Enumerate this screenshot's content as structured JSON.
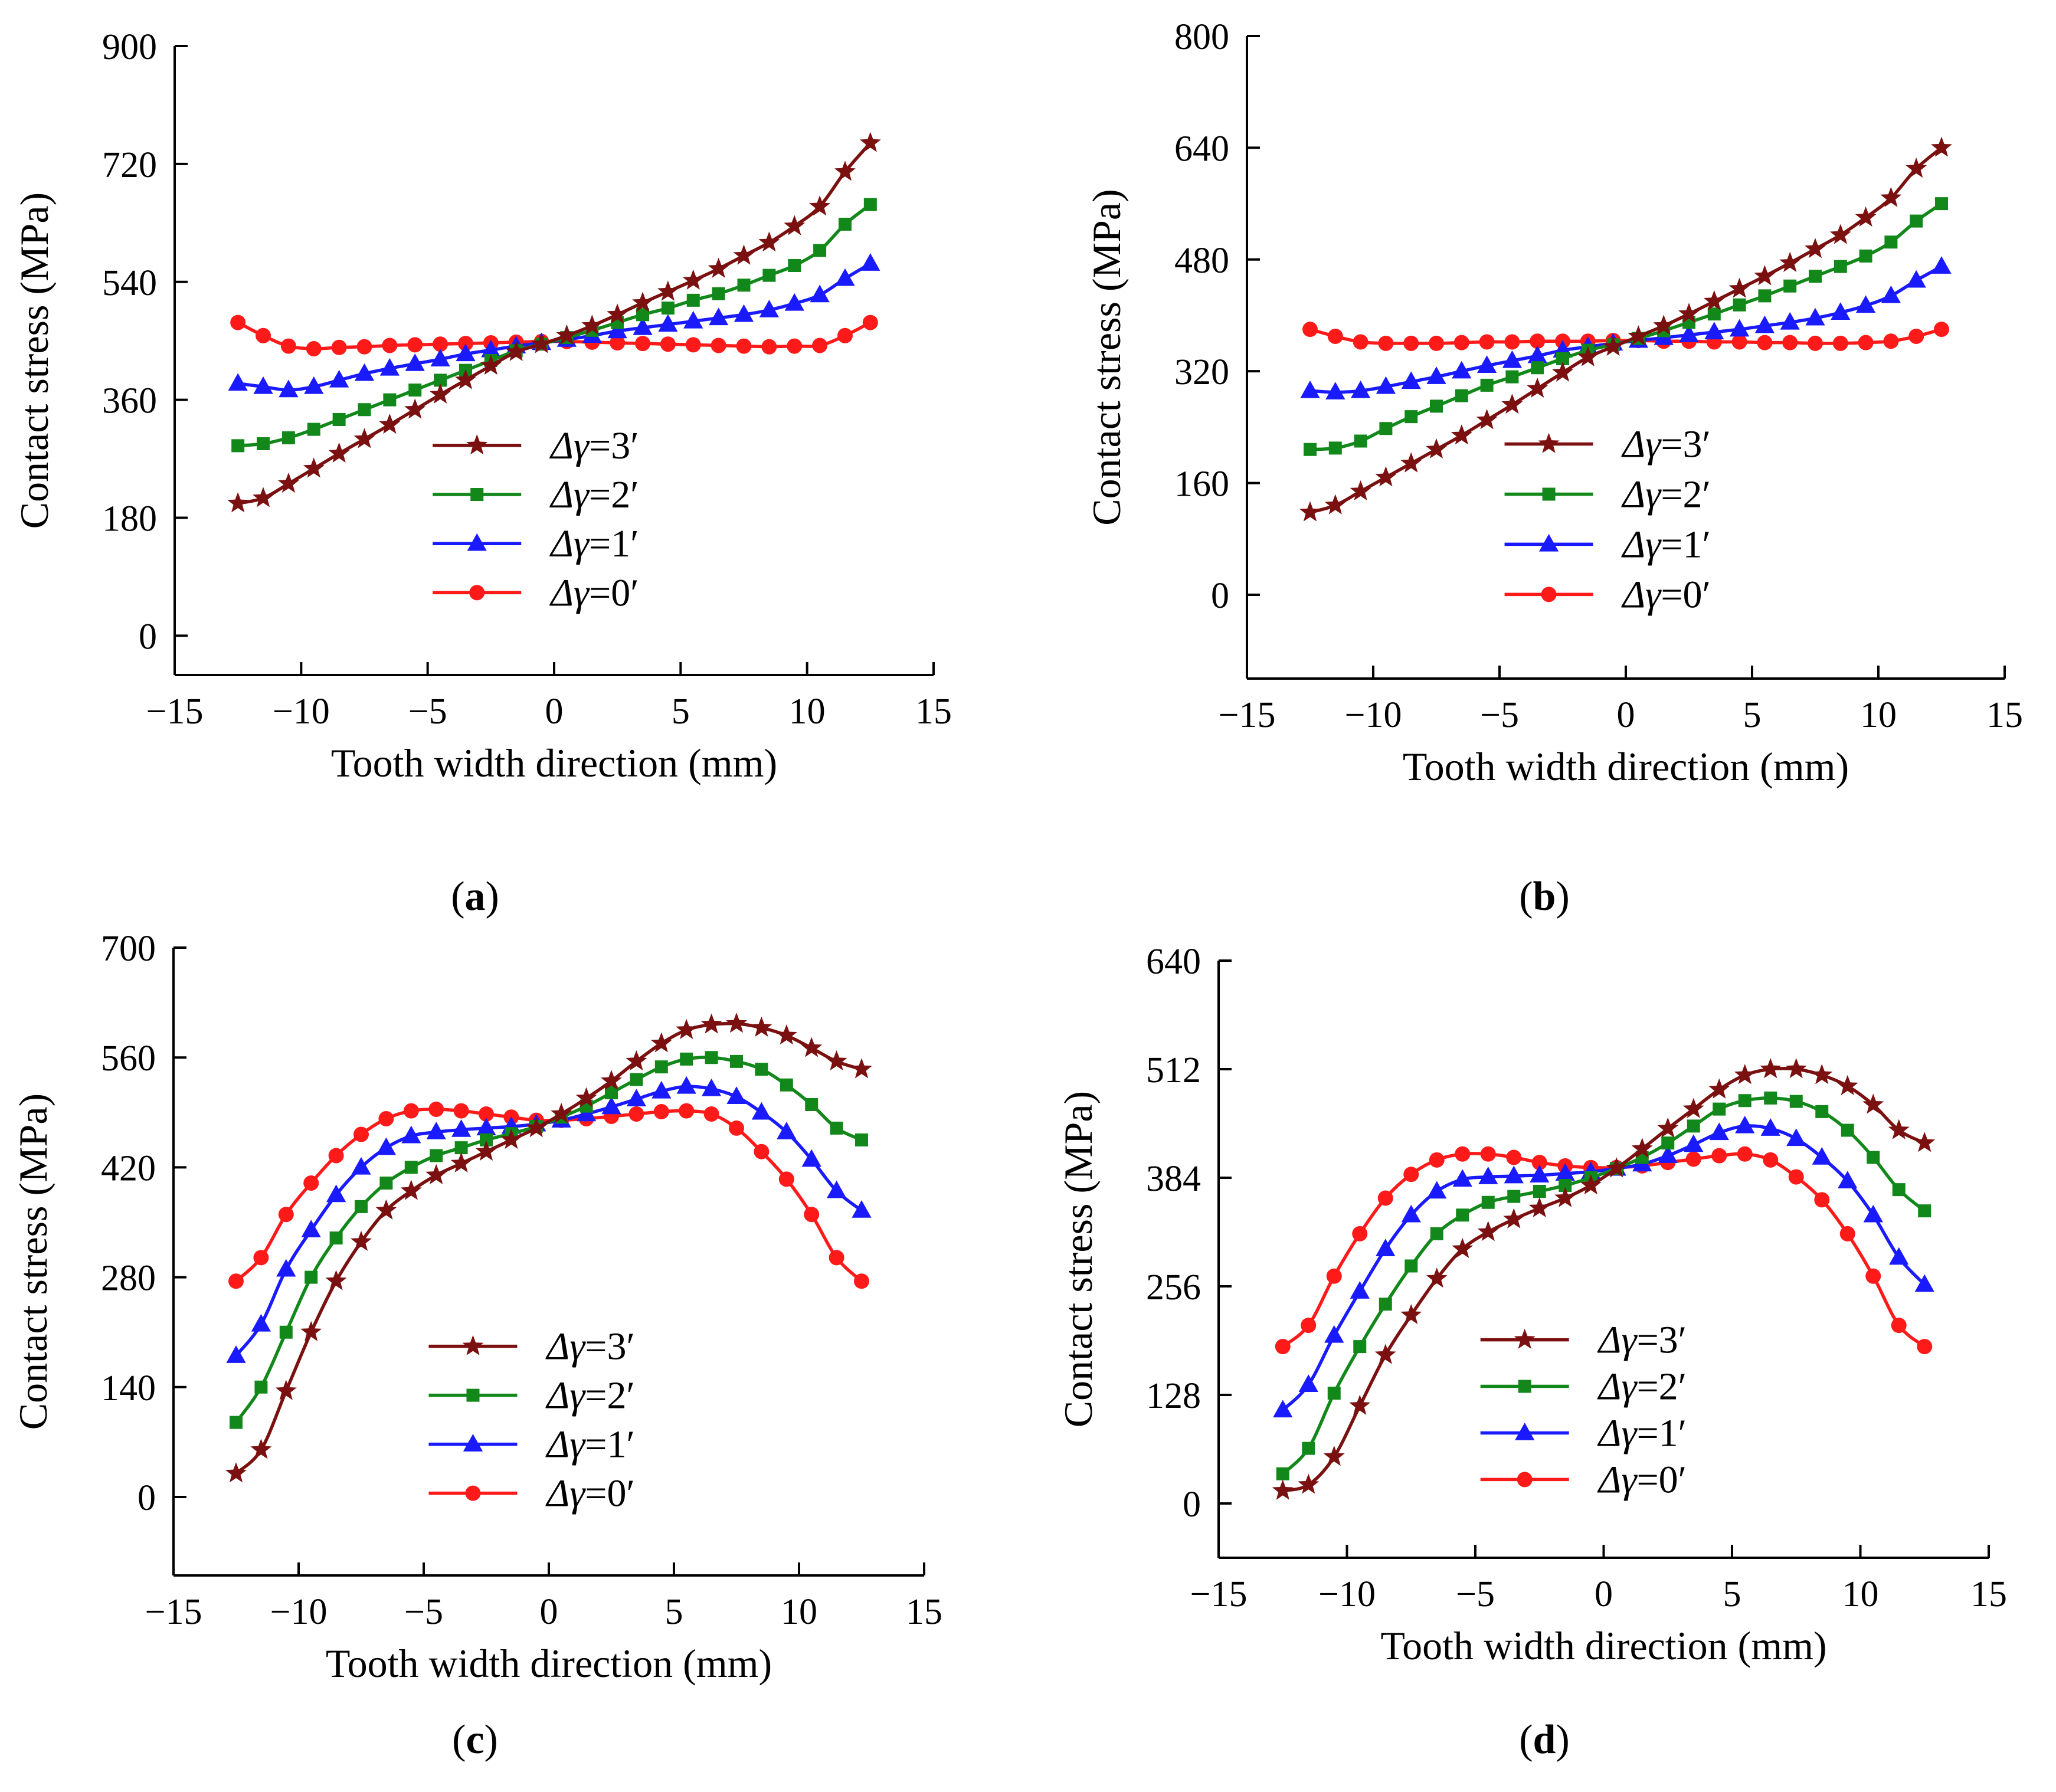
{
  "figure": {
    "background": "#ffffff"
  },
  "series_styles": [
    {
      "key": "d3",
      "color": "#7b1010",
      "marker": "star"
    },
    {
      "key": "d2",
      "color": "#12881a",
      "marker": "square"
    },
    {
      "key": "d1",
      "color": "#1a1aff",
      "marker": "triangle"
    },
    {
      "key": "d0",
      "color": "#ff1a1a",
      "marker": "circle"
    }
  ],
  "chart_data": [
    {
      "id": "a",
      "type": "line",
      "caption": "(a)",
      "caption_letter": "a",
      "xlabel": "Tooth width direction  (mm)",
      "ylabel": "Contact stress (MPa)",
      "xlim": [
        -15,
        15
      ],
      "ylim": [
        -60,
        900
      ],
      "xticks": [
        -15,
        -10,
        -5,
        0,
        5,
        10,
        15
      ],
      "xtick_labels": [
        "−15",
        "−10",
        "−5",
        "0",
        "5",
        "10",
        "15"
      ],
      "yticks": [
        0,
        180,
        360,
        540,
        720,
        900
      ],
      "ytick_labels": [
        "0",
        "180",
        "360",
        "540",
        "720",
        "900"
      ],
      "x": [
        -12.5,
        -11.5,
        -10.5,
        -9.5,
        -8.5,
        -7.5,
        -6.5,
        -5.5,
        -4.5,
        -3.5,
        -2.5,
        -1.5,
        -0.5,
        0.5,
        1.5,
        2.5,
        3.5,
        4.5,
        5.5,
        6.5,
        7.5,
        8.5,
        9.5,
        10.5,
        11.5,
        12.5
      ],
      "series": [
        {
          "name": "Δγ=3′",
          "legend_prefix": "Δ",
          "legend_gamma": "γ",
          "legend_rest": "=3′",
          "values": [
            202,
            210,
            232,
            255,
            278,
            300,
            322,
            345,
            368,
            390,
            412,
            433,
            445,
            458,
            473,
            490,
            508,
            525,
            542,
            560,
            580,
            600,
            625,
            655,
            708,
            752
          ]
        },
        {
          "name": "Δγ=2′",
          "legend_prefix": "Δ",
          "legend_gamma": "γ",
          "legend_rest": "=2′",
          "values": [
            290,
            293,
            302,
            315,
            330,
            345,
            360,
            375,
            390,
            405,
            420,
            435,
            445,
            455,
            466,
            478,
            490,
            500,
            512,
            522,
            535,
            550,
            565,
            588,
            628,
            658
          ]
        },
        {
          "name": "Δγ=1′",
          "legend_prefix": "Δ",
          "legend_gamma": "γ",
          "legend_rest": "=1′",
          "values": [
            385,
            380,
            375,
            380,
            390,
            400,
            408,
            415,
            422,
            430,
            436,
            442,
            447,
            452,
            458,
            465,
            470,
            475,
            480,
            485,
            490,
            497,
            507,
            520,
            545,
            568
          ]
        },
        {
          "name": "Δγ=0′",
          "legend_prefix": "Δ",
          "legend_gamma": "γ",
          "legend_rest": "=0′",
          "values": [
            478,
            458,
            442,
            438,
            440,
            441,
            443,
            444,
            445,
            446,
            447,
            448,
            449,
            449,
            448,
            447,
            446,
            445,
            444,
            443,
            442,
            441,
            442,
            443,
            458,
            478
          ]
        }
      ]
    },
    {
      "id": "b",
      "type": "line",
      "caption": "(b)",
      "caption_letter": "b",
      "xlabel": "Tooth width direction  (mm)",
      "ylabel": "Contact stress (MPa)",
      "xlim": [
        -15,
        15
      ],
      "ylim": [
        -120,
        800
      ],
      "xticks": [
        -15,
        -10,
        -5,
        0,
        5,
        10,
        15
      ],
      "xtick_labels": [
        "−15",
        "−10",
        "−5",
        "0",
        "5",
        "10",
        "15"
      ],
      "yticks": [
        0,
        160,
        320,
        480,
        640,
        800
      ],
      "ytick_labels": [
        "0",
        "160",
        "320",
        "480",
        "640",
        "800"
      ],
      "x": [
        -12.5,
        -11.5,
        -10.5,
        -9.5,
        -8.5,
        -7.5,
        -6.5,
        -5.5,
        -4.5,
        -3.5,
        -2.5,
        -1.5,
        -0.5,
        0.5,
        1.5,
        2.5,
        3.5,
        4.5,
        5.5,
        6.5,
        7.5,
        8.5,
        9.5,
        10.5,
        11.5,
        12.5
      ],
      "series": [
        {
          "name": "Δγ=3′",
          "legend_prefix": "Δ",
          "legend_gamma": "γ",
          "legend_rest": "=3′",
          "values": [
            118,
            128,
            148,
            168,
            188,
            208,
            228,
            250,
            272,
            295,
            318,
            340,
            355,
            370,
            385,
            402,
            420,
            438,
            456,
            475,
            495,
            515,
            540,
            568,
            610,
            640
          ]
        },
        {
          "name": "Δγ=2′",
          "legend_prefix": "Δ",
          "legend_gamma": "γ",
          "legend_rest": "=2′",
          "values": [
            208,
            210,
            220,
            238,
            255,
            270,
            285,
            300,
            312,
            325,
            338,
            350,
            358,
            367,
            378,
            390,
            402,
            415,
            428,
            442,
            456,
            470,
            485,
            505,
            535,
            560
          ]
        },
        {
          "name": "Δγ=1′",
          "legend_prefix": "Δ",
          "legend_gamma": "γ",
          "legend_rest": "=1′",
          "values": [
            292,
            290,
            292,
            298,
            305,
            312,
            320,
            328,
            335,
            342,
            350,
            355,
            360,
            364,
            368,
            372,
            376,
            380,
            385,
            390,
            396,
            404,
            414,
            428,
            450,
            470
          ]
        },
        {
          "name": "Δγ=0′",
          "legend_prefix": "Δ",
          "legend_gamma": "γ",
          "legend_rest": "=0′",
          "values": [
            380,
            370,
            362,
            360,
            360,
            360,
            361,
            362,
            362,
            363,
            363,
            363,
            364,
            364,
            363,
            363,
            362,
            362,
            361,
            361,
            360,
            360,
            361,
            363,
            370,
            380
          ]
        }
      ]
    },
    {
      "id": "c",
      "type": "line",
      "caption": "(c)",
      "caption_letter": "c",
      "xlabel": "Tooth width direction  (mm)",
      "ylabel": "Contact stress (MPa)",
      "xlim": [
        -15,
        15
      ],
      "ylim": [
        -100,
        700
      ],
      "xticks": [
        -15,
        -10,
        -5,
        0,
        5,
        10,
        15
      ],
      "xtick_labels": [
        "−15",
        "−10",
        "−5",
        "0",
        "5",
        "10",
        "15"
      ],
      "yticks": [
        0,
        140,
        280,
        420,
        560,
        700
      ],
      "ytick_labels": [
        "0",
        "140",
        "280",
        "420",
        "560",
        "700"
      ],
      "x": [
        -12.5,
        -11.5,
        -10.5,
        -9.5,
        -8.5,
        -7.5,
        -6.5,
        -5.5,
        -4.5,
        -3.5,
        -2.5,
        -1.5,
        -0.5,
        0.5,
        1.5,
        2.5,
        3.5,
        4.5,
        5.5,
        6.5,
        7.5,
        8.5,
        9.5,
        10.5,
        11.5,
        12.5
      ],
      "series": [
        {
          "name": "Δγ=3′",
          "legend_prefix": "Δ",
          "legend_gamma": "γ",
          "legend_rest": "=3′",
          "values": [
            30,
            60,
            135,
            210,
            275,
            325,
            365,
            390,
            410,
            425,
            440,
            455,
            470,
            488,
            508,
            530,
            555,
            578,
            595,
            602,
            603,
            598,
            588,
            572,
            555,
            545
          ]
        },
        {
          "name": "Δγ=2′",
          "legend_prefix": "Δ",
          "legend_gamma": "γ",
          "legend_rest": "=2′",
          "values": [
            95,
            140,
            210,
            280,
            330,
            370,
            400,
            420,
            435,
            445,
            455,
            463,
            472,
            484,
            498,
            515,
            532,
            548,
            558,
            560,
            555,
            545,
            525,
            500,
            470,
            455
          ]
        },
        {
          "name": "Δγ=1′",
          "legend_prefix": "Δ",
          "legend_gamma": "γ",
          "legend_rest": "=1′",
          "values": [
            180,
            220,
            290,
            340,
            385,
            420,
            445,
            460,
            465,
            468,
            470,
            472,
            475,
            480,
            488,
            497,
            507,
            517,
            523,
            520,
            510,
            490,
            465,
            430,
            390,
            365
          ]
        },
        {
          "name": "Δγ=0′",
          "legend_prefix": "Δ",
          "legend_gamma": "γ",
          "legend_rest": "=0′",
          "values": [
            275,
            305,
            360,
            400,
            435,
            462,
            482,
            492,
            494,
            492,
            488,
            484,
            480,
            480,
            482,
            485,
            488,
            491,
            492,
            488,
            470,
            440,
            405,
            360,
            305,
            275
          ]
        }
      ]
    },
    {
      "id": "d",
      "type": "line",
      "caption": "(d)",
      "caption_letter": "d",
      "xlabel": "Tooth width direction  (mm)",
      "ylabel": "Contact stress (MPa)",
      "xlim": [
        -15,
        15
      ],
      "ylim": [
        -64,
        640
      ],
      "xticks": [
        -15,
        -10,
        -5,
        0,
        5,
        10,
        15
      ],
      "xtick_labels": [
        "−15",
        "−10",
        "−5",
        "0",
        "5",
        "10",
        "15"
      ],
      "yticks": [
        0,
        128,
        256,
        384,
        512,
        640
      ],
      "ytick_labels": [
        "0",
        "128",
        "256",
        "384",
        "512",
        "640"
      ],
      "x": [
        -12.5,
        -11.5,
        -10.5,
        -9.5,
        -8.5,
        -7.5,
        -6.5,
        -5.5,
        -4.5,
        -3.5,
        -2.5,
        -1.5,
        -0.5,
        0.5,
        1.5,
        2.5,
        3.5,
        4.5,
        5.5,
        6.5,
        7.5,
        8.5,
        9.5,
        10.5,
        11.5,
        12.5
      ],
      "series": [
        {
          "name": "Δγ=3′",
          "legend_prefix": "Δ",
          "legend_gamma": "γ",
          "legend_rest": "=3′",
          "values": [
            15,
            22,
            55,
            115,
            175,
            222,
            265,
            300,
            320,
            335,
            348,
            360,
            375,
            395,
            418,
            442,
            465,
            488,
            505,
            512,
            512,
            505,
            492,
            470,
            440,
            425
          ]
        },
        {
          "name": "Δγ=2′",
          "legend_prefix": "Δ",
          "legend_gamma": "γ",
          "legend_rest": "=2′",
          "values": [
            35,
            65,
            130,
            185,
            235,
            280,
            318,
            340,
            355,
            362,
            368,
            375,
            384,
            395,
            408,
            425,
            445,
            465,
            475,
            478,
            474,
            462,
            440,
            408,
            370,
            345
          ]
        },
        {
          "name": "Δγ=1′",
          "legend_prefix": "Δ",
          "legend_gamma": "γ",
          "legend_rest": "=1′",
          "values": [
            110,
            140,
            198,
            250,
            300,
            340,
            368,
            382,
            385,
            386,
            387,
            389,
            391,
            395,
            400,
            410,
            423,
            437,
            445,
            442,
            430,
            408,
            380,
            340,
            290,
            258
          ]
        },
        {
          "name": "Δγ=0′",
          "legend_prefix": "Δ",
          "legend_gamma": "γ",
          "legend_rest": "=0′",
          "values": [
            185,
            210,
            268,
            318,
            360,
            388,
            405,
            412,
            412,
            408,
            402,
            398,
            396,
            396,
            398,
            402,
            406,
            410,
            412,
            405,
            385,
            358,
            318,
            268,
            210,
            185
          ]
        }
      ]
    }
  ]
}
